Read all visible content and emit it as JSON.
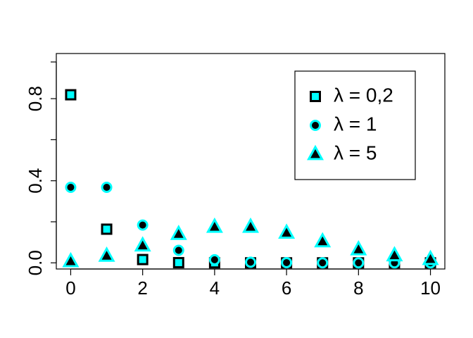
{
  "chart_data": {
    "type": "scatter",
    "title": "",
    "xlabel": "",
    "ylabel": "",
    "xlim": [
      -0.4,
      10.4
    ],
    "ylim": [
      -0.03,
      1.02
    ],
    "x_ticks": [
      "0",
      "2",
      "4",
      "6",
      "8",
      "10"
    ],
    "x_tick_values": [
      0,
      2,
      4,
      6,
      8,
      10
    ],
    "y_ticks": [
      "0.0",
      "0.4",
      "0.8"
    ],
    "y_tick_values": [
      0.0,
      0.4,
      0.8
    ],
    "grid": false,
    "legend_position": "top-right",
    "x": [
      0,
      1,
      2,
      3,
      4,
      5,
      6,
      7,
      8,
      9,
      10
    ],
    "series": [
      {
        "name": "λ = 0,2",
        "marker": "square",
        "fill": "#00ffff",
        "stroke": "#000000",
        "values": [
          0.819,
          0.164,
          0.016,
          0.001,
          0.0,
          0.0,
          0.0,
          0.0,
          0.0,
          0.0,
          0.0
        ]
      },
      {
        "name": "λ = 1",
        "marker": "circle",
        "fill": "#000000",
        "stroke": "#00ffff",
        "values": [
          0.368,
          0.368,
          0.184,
          0.061,
          0.015,
          0.003,
          0.001,
          0.0,
          0.0,
          0.0,
          0.0
        ]
      },
      {
        "name": "λ = 5",
        "marker": "triangle",
        "fill": "#000000",
        "stroke": "#00ffff",
        "values": [
          0.007,
          0.034,
          0.084,
          0.14,
          0.175,
          0.175,
          0.146,
          0.104,
          0.065,
          0.036,
          0.018
        ]
      }
    ]
  }
}
